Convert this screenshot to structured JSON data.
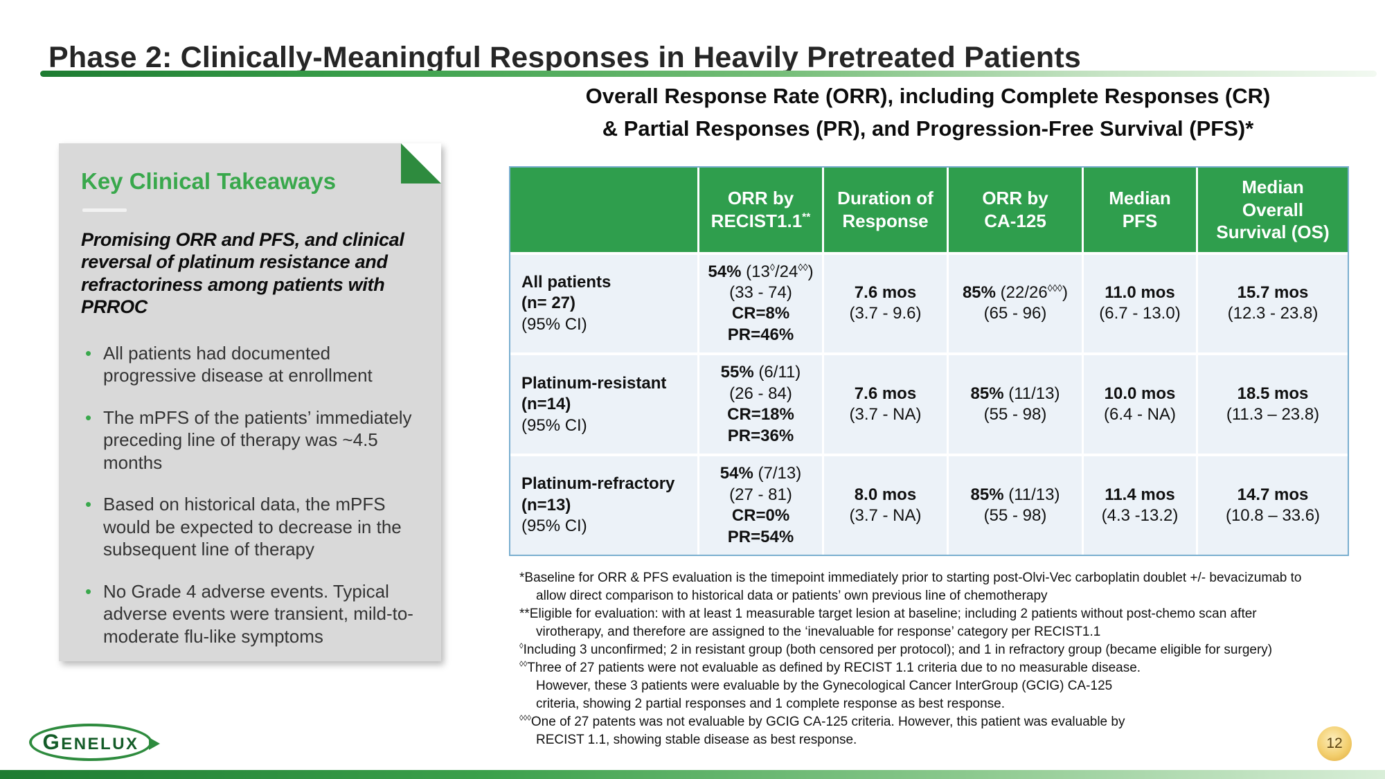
{
  "slide": {
    "title": "Phase 2: Clinically-Meaningful Responses in Heavily Pretreated Patients",
    "page_number": "12",
    "logo_text": "GENELUX",
    "accent_green": "#2f9e4d",
    "panel_gray": "#d9d9d9",
    "row_blue": "#ecf2f8"
  },
  "takeaways": {
    "heading": "Key Clinical Takeaways",
    "lead": "Promising ORR and PFS, and clinical reversal of platinum resistance and refractoriness among patients with PRROC",
    "bullets": [
      "All patients had documented progressive disease at enrollment",
      "The mPFS of the patients’ immediately preceding line of therapy was ~4.5 months",
      "Based on historical data, the mPFS would be expected to decrease in the subsequent line of therapy",
      "No Grade 4 adverse events.  Typical adverse events were transient, mild-to-moderate flu-like symptoms"
    ]
  },
  "results": {
    "title_line1": "Overall Response Rate (ORR), including Complete Responses (CR)",
    "title_line2": "& Partial Responses (PR), and Progression-Free Survival (PFS)*"
  },
  "chart_data": {
    "type": "table",
    "headers": [
      "",
      "ORR by\nRECIST1.1**",
      "Duration of\nResponse",
      "ORR by\nCA-125",
      "Median\nPFS",
      "Median\nOverall\nSurvival (OS)"
    ],
    "rows": [
      {
        "label": [
          {
            "b": "All patients"
          },
          {
            "b": "(n= 27)"
          },
          {
            "t": "(95% CI)"
          }
        ],
        "cells": [
          [
            {
              "b": "54%",
              "t": " (13◊/24◊◊)"
            },
            {
              "t": "(33 - 74)"
            },
            {
              "b": "CR=8%"
            },
            {
              "b": "PR=46%"
            }
          ],
          [
            {
              "b": "7.6 mos"
            },
            {
              "t": "(3.7 - 9.6)"
            }
          ],
          [
            {
              "b": "85%",
              "t": " (22/26◊◊◊)"
            },
            {
              "t": "(65 - 96)"
            }
          ],
          [
            {
              "b": "11.0 mos"
            },
            {
              "t": "(6.7 - 13.0)"
            }
          ],
          [
            {
              "b": "15.7 mos"
            },
            {
              "t": "(12.3 - 23.8)"
            }
          ]
        ]
      },
      {
        "label": [
          {
            "b": "Platinum-resistant"
          },
          {
            "b": "(n=14)"
          },
          {
            "t": "(95% CI)"
          }
        ],
        "cells": [
          [
            {
              "b": "55%",
              "t": " (6/11)"
            },
            {
              "t": "(26 - 84)"
            },
            {
              "b": "CR=18%"
            },
            {
              "b": "PR=36%"
            }
          ],
          [
            {
              "b": "7.6 mos"
            },
            {
              "t": "(3.7 - NA)"
            }
          ],
          [
            {
              "b": "85%",
              "t": " (11/13)"
            },
            {
              "t": "(55 - 98)"
            }
          ],
          [
            {
              "b": "10.0 mos"
            },
            {
              "t": "(6.4 - NA)"
            }
          ],
          [
            {
              "b": "18.5 mos"
            },
            {
              "t": "(11.3 – 23.8)"
            }
          ]
        ]
      },
      {
        "label": [
          {
            "b": "Platinum-refractory"
          },
          {
            "b": "(n=13)"
          },
          {
            "t": "(95% CI)"
          }
        ],
        "cells": [
          [
            {
              "b": "54%",
              "t": " (7/13)"
            },
            {
              "t": "(27 - 81)"
            },
            {
              "b": "CR=0%"
            },
            {
              "b": "PR=54%"
            }
          ],
          [
            {
              "b": "8.0 mos"
            },
            {
              "t": "(3.7 - NA)"
            }
          ],
          [
            {
              "b": "85%",
              "t": " (11/13)"
            },
            {
              "t": "(55 - 98)"
            }
          ],
          [
            {
              "b": "11.4 mos"
            },
            {
              "t": "(4.3 -13.2)"
            }
          ],
          [
            {
              "b": "14.7 mos"
            },
            {
              "t": "(10.8 – 33.6)"
            }
          ]
        ]
      }
    ]
  },
  "footnotes": [
    {
      "text": "*Baseline for ORR & PFS evaluation is the timepoint immediately prior to starting post-Olvi-Vec carboplatin doublet +/- bevacizumab to",
      "indent": false
    },
    {
      "text": "allow direct comparison to historical data or patients’ own previous line of chemotherapy",
      "indent": true
    },
    {
      "text": "**Eligible for evaluation: with at least 1 measurable target lesion at baseline; including 2 patients without post-chemo scan after",
      "indent": false
    },
    {
      "text": "virotherapy, and therefore are assigned to the ‘inevaluable for response’ category per RECIST1.1",
      "indent": true
    },
    {
      "text": "◊Including 3 unconfirmed; 2 in resistant group (both censored per protocol); and 1 in refractory group (became eligible for surgery)",
      "indent": false
    },
    {
      "text": "◊◊Three of 27 patients were not evaluable as defined by RECIST 1.1 criteria due to no measurable disease.",
      "indent": false
    },
    {
      "text": "However, these 3 patients were evaluable by the Gynecological Cancer InterGroup (GCIG) CA-125",
      "indent": true
    },
    {
      "text": "criteria, showing 2 partial responses and 1 complete response as best response.",
      "indent": true
    },
    {
      "text": "◊◊◊One of 27 patents was not evaluable by GCIG CA-125 criteria. However, this patient was evaluable by",
      "indent": false
    },
    {
      "text": "RECIST 1.1, showing stable disease as best response.",
      "indent": true
    }
  ]
}
